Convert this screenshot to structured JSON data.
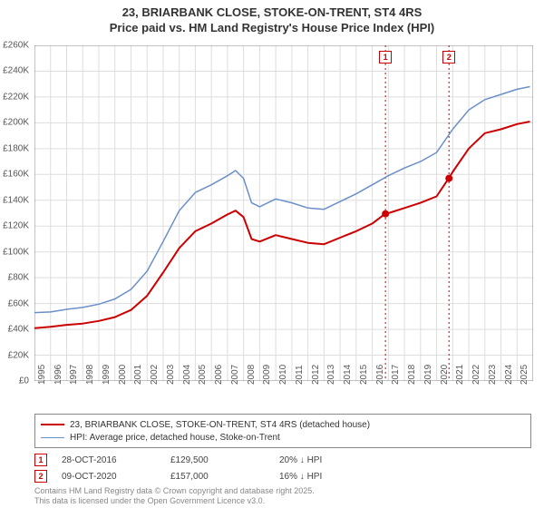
{
  "title_line1": "23, BRIARBANK CLOSE, STOKE-ON-TRENT, ST4 4RS",
  "title_line2": "Price paid vs. HM Land Registry's House Price Index (HPI)",
  "chart": {
    "type": "line",
    "background_color": "#ffffff",
    "grid_color": "#dddddd",
    "axis_color": "#888888",
    "label_fontsize": 10,
    "label_color": "#555555",
    "ylim": [
      0,
      260000
    ],
    "ytick_step": 20000,
    "y_ticks": [
      "£0",
      "£20K",
      "£40K",
      "£60K",
      "£80K",
      "£100K",
      "£120K",
      "£140K",
      "£160K",
      "£180K",
      "£200K",
      "£220K",
      "£240K",
      "£260K"
    ],
    "xlim": [
      1995,
      2026
    ],
    "x_ticks": [
      1995,
      1996,
      1997,
      1998,
      1999,
      2000,
      2001,
      2002,
      2003,
      2004,
      2005,
      2006,
      2007,
      2008,
      2009,
      2010,
      2011,
      2012,
      2013,
      2014,
      2015,
      2016,
      2017,
      2018,
      2019,
      2020,
      2021,
      2022,
      2023,
      2024,
      2025
    ],
    "series": [
      {
        "name": "property",
        "label": "23, BRIARBANK CLOSE, STOKE-ON-TRENT, ST4 4RS (detached house)",
        "color": "#cc0000",
        "line_width": 2,
        "data": [
          [
            1995,
            41000
          ],
          [
            1996,
            42000
          ],
          [
            1997,
            43500
          ],
          [
            1998,
            44500
          ],
          [
            1999,
            46500
          ],
          [
            2000,
            49500
          ],
          [
            2001,
            55000
          ],
          [
            2002,
            66000
          ],
          [
            2003,
            84000
          ],
          [
            2004,
            103000
          ],
          [
            2005,
            116000
          ],
          [
            2006,
            122000
          ],
          [
            2007,
            129000
          ],
          [
            2007.5,
            132000
          ],
          [
            2008,
            127000
          ],
          [
            2008.5,
            110000
          ],
          [
            2009,
            108000
          ],
          [
            2010,
            113000
          ],
          [
            2011,
            110000
          ],
          [
            2012,
            107000
          ],
          [
            2013,
            106000
          ],
          [
            2014,
            111000
          ],
          [
            2015,
            116000
          ],
          [
            2016,
            122000
          ],
          [
            2016.8,
            129500
          ],
          [
            2017,
            130000
          ],
          [
            2018,
            134000
          ],
          [
            2019,
            138000
          ],
          [
            2020,
            143000
          ],
          [
            2020.75,
            157000
          ],
          [
            2021,
            162000
          ],
          [
            2022,
            180000
          ],
          [
            2023,
            192000
          ],
          [
            2024,
            195000
          ],
          [
            2025,
            199000
          ],
          [
            2025.8,
            201000
          ]
        ]
      },
      {
        "name": "hpi",
        "label": "HPI: Average price, detached house, Stoke-on-Trent",
        "color": "#6b8fc9",
        "line_width": 1.5,
        "data": [
          [
            1995,
            53000
          ],
          [
            1996,
            53500
          ],
          [
            1997,
            55500
          ],
          [
            1998,
            57000
          ],
          [
            1999,
            59500
          ],
          [
            2000,
            63500
          ],
          [
            2001,
            71000
          ],
          [
            2002,
            85000
          ],
          [
            2003,
            108000
          ],
          [
            2004,
            132000
          ],
          [
            2005,
            146000
          ],
          [
            2006,
            152000
          ],
          [
            2007,
            159000
          ],
          [
            2007.5,
            163000
          ],
          [
            2008,
            157000
          ],
          [
            2008.5,
            138000
          ],
          [
            2009,
            135000
          ],
          [
            2010,
            141000
          ],
          [
            2011,
            138000
          ],
          [
            2012,
            134000
          ],
          [
            2013,
            133000
          ],
          [
            2014,
            139000
          ],
          [
            2015,
            145000
          ],
          [
            2016,
            152000
          ],
          [
            2017,
            159000
          ],
          [
            2018,
            165000
          ],
          [
            2019,
            170000
          ],
          [
            2020,
            177000
          ],
          [
            2021,
            195000
          ],
          [
            2022,
            210000
          ],
          [
            2023,
            218000
          ],
          [
            2024,
            222000
          ],
          [
            2025,
            226000
          ],
          [
            2025.8,
            228000
          ]
        ]
      }
    ],
    "sale_markers": [
      {
        "id": "1",
        "x": 2016.82,
        "date": "28-OCT-2016",
        "price": 129500,
        "price_label": "£129,500",
        "delta": "20% ↓ HPI",
        "color": "#cc0000"
      },
      {
        "id": "2",
        "x": 2020.77,
        "date": "09-OCT-2020",
        "price": 157000,
        "price_label": "£157,000",
        "delta": "16% ↓ HPI",
        "color": "#cc0000"
      }
    ],
    "marker_dot_radius": 4
  },
  "footer_line1": "Contains HM Land Registry data © Crown copyright and database right 2025.",
  "footer_line2": "This data is licensed under the Open Government Licence v3.0."
}
